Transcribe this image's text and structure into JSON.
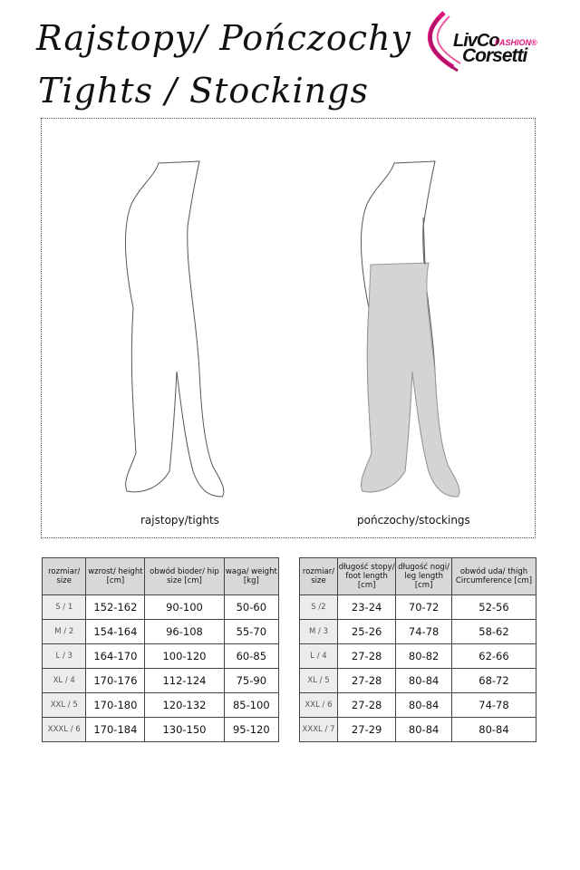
{
  "header": {
    "title_line1": "Rajstopy/ Pończochy",
    "title_line2": "Tights / Stockings"
  },
  "logo": {
    "line1": "LivCo",
    "line2": "FASHION®",
    "line3": "Corsetti",
    "accent": "#e0157a"
  },
  "illustration": {
    "left_label": "rajstopy/tights",
    "right_label": "pończochy/stockings"
  },
  "tights_table": {
    "headers": [
      "rozmiar/ size",
      "wzrost/ height [cm]",
      "obwód bioder/ hip size [cm]",
      "waga/ weight [kg]"
    ],
    "rows": [
      [
        "S / 1",
        "152-162",
        "90-100",
        "50-60"
      ],
      [
        "M / 2",
        "154-164",
        "96-108",
        "55-70"
      ],
      [
        "L / 3",
        "164-170",
        "100-120",
        "60-85"
      ],
      [
        "XL / 4",
        "170-176",
        "112-124",
        "75-90"
      ],
      [
        "XXL / 5",
        "170-180",
        "120-132",
        "85-100"
      ],
      [
        "XXXL / 6",
        "170-184",
        "130-150",
        "95-120"
      ]
    ]
  },
  "stockings_table": {
    "headers": [
      "rozmiar/ size",
      "długość stopy/ foot length [cm]",
      "długość nogi/ leg length [cm]",
      "obwód uda/ thigh Circumference [cm]"
    ],
    "rows": [
      [
        "S /2",
        "23-24",
        "70-72",
        "52-56"
      ],
      [
        "M / 3",
        "25-26",
        "74-78",
        "58-62"
      ],
      [
        "L / 4",
        "27-28",
        "80-82",
        "62-66"
      ],
      [
        "XL / 5",
        "27-28",
        "80-84",
        "68-72"
      ],
      [
        "XXL / 6",
        "27-28",
        "80-84",
        "74-78"
      ],
      [
        "XXXL / 7",
        "27-29",
        "80-84",
        "80-84"
      ]
    ]
  }
}
